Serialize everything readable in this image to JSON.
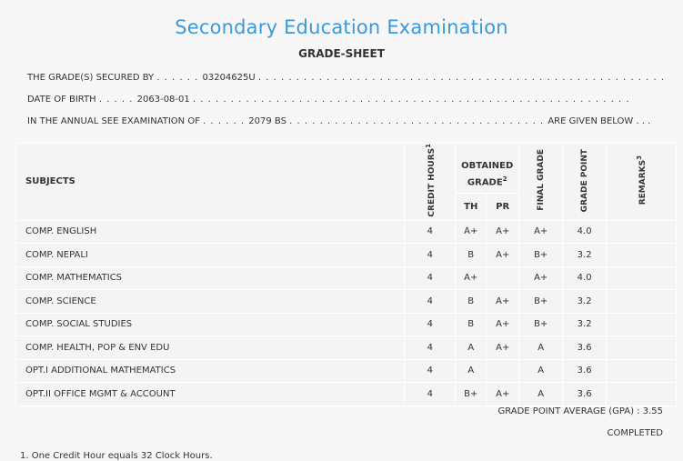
{
  "header": {
    "title": "Secondary Education Examination",
    "subtitle": "GRADE-SHEET"
  },
  "info": {
    "secured_by_label": "THE GRADE(S) SECURED BY",
    "symbol_no": "03204625U",
    "dob_label": "DATE OF BIRTH",
    "dob": "2063-08-01",
    "exam_label": "IN THE ANNUAL SEE EXAMINATION OF",
    "exam_year": "2079 BS",
    "given_below": "ARE GIVEN BELOW . . ."
  },
  "table": {
    "headers": {
      "subjects": "SUBJECTS",
      "credit_hours": "CREDIT HOURS",
      "credit_sup": "1",
      "obtained_grade": "OBTAINED GRADE",
      "obtained_sup": "2",
      "th": "TH",
      "pr": "PR",
      "final_grade": "FINAL GRADE",
      "grade_point": "GRADE POINT",
      "remarks": "REMARKS",
      "remarks_sup": "3"
    },
    "rows": [
      {
        "subject": "COMP. ENGLISH",
        "credit": "4",
        "th": "A+",
        "pr": "A+",
        "final": "A+",
        "gp": "4.0",
        "remarks": ""
      },
      {
        "subject": "COMP. NEPALI",
        "credit": "4",
        "th": "B",
        "pr": "A+",
        "final": "B+",
        "gp": "3.2",
        "remarks": ""
      },
      {
        "subject": "COMP. MATHEMATICS",
        "credit": "4",
        "th": "A+",
        "pr": "",
        "final": "A+",
        "gp": "4.0",
        "remarks": ""
      },
      {
        "subject": "COMP. SCIENCE",
        "credit": "4",
        "th": "B",
        "pr": "A+",
        "final": "B+",
        "gp": "3.2",
        "remarks": ""
      },
      {
        "subject": "COMP. SOCIAL STUDIES",
        "credit": "4",
        "th": "B",
        "pr": "A+",
        "final": "B+",
        "gp": "3.2",
        "remarks": ""
      },
      {
        "subject": "COMP. HEALTH, POP & ENV EDU",
        "credit": "4",
        "th": "A",
        "pr": "A+",
        "final": "A",
        "gp": "3.6",
        "remarks": ""
      },
      {
        "subject": "OPT.I ADDITIONAL MATHEMATICS",
        "credit": "4",
        "th": "A",
        "pr": "",
        "final": "A",
        "gp": "3.6",
        "remarks": ""
      },
      {
        "subject": "OPT.II OFFICE MGMT & ACCOUNT",
        "credit": "4",
        "th": "B+",
        "pr": "A+",
        "final": "A",
        "gp": "3.6",
        "remarks": ""
      }
    ]
  },
  "summary": {
    "gpa_label": "GRADE POINT AVERAGE (GPA) :",
    "gpa": "3.55",
    "status": "COMPLETED"
  },
  "footnotes": {
    "note1": "1. One Credit Hour equals 32 Clock Hours."
  },
  "colors": {
    "title": "#3a9ad9",
    "background": "#f7f7f7"
  }
}
